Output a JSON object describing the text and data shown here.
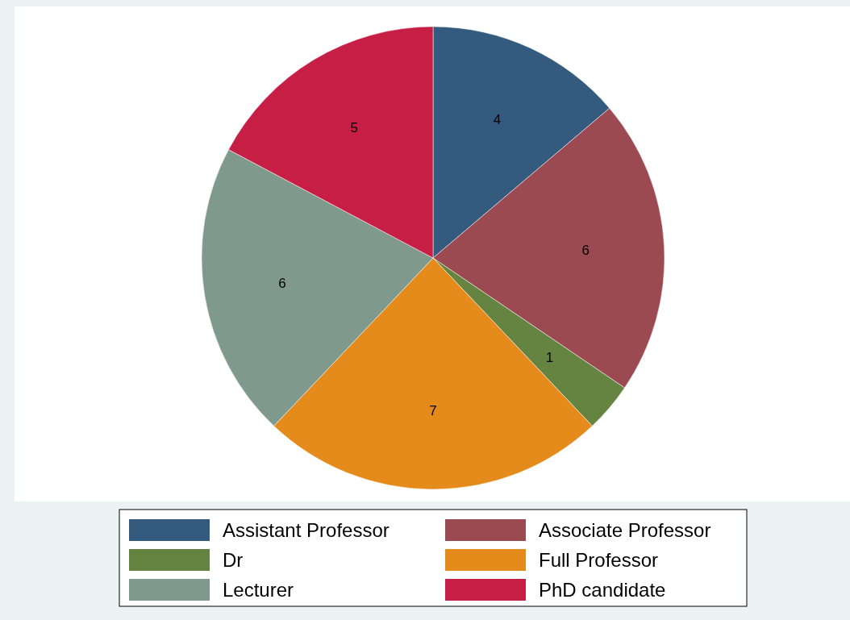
{
  "chart_data": {
    "type": "pie",
    "categories": [
      "Assistant Professor",
      "Associate Professor",
      "Dr",
      "Full Professor",
      "Lecturer",
      "PhD candidate"
    ],
    "values": [
      4,
      6,
      1,
      7,
      6,
      5
    ],
    "colors": [
      "#345a7d",
      "#9a4a50",
      "#658441",
      "#e58b1b",
      "#7f998d",
      "#c71e45"
    ],
    "data_labels": true,
    "legend": "bottom"
  }
}
